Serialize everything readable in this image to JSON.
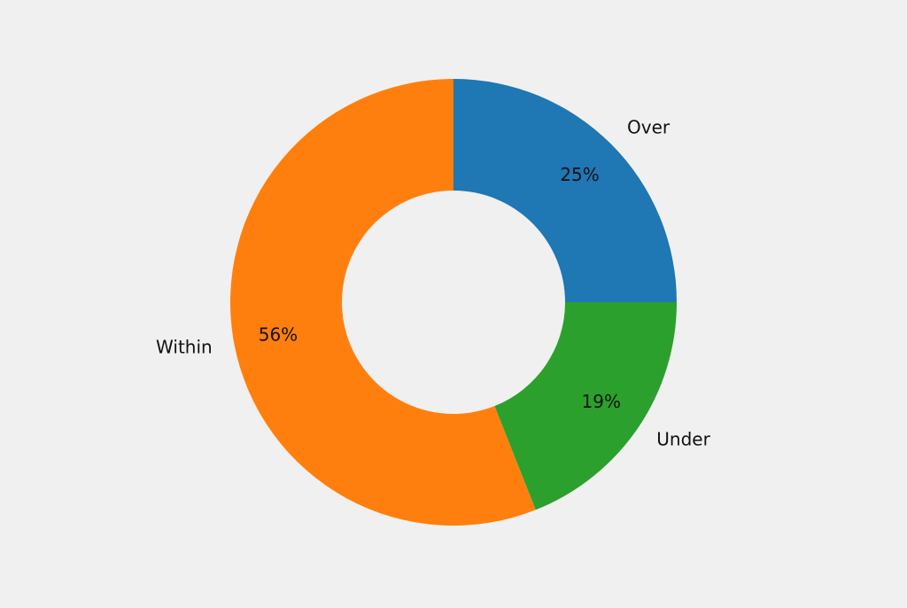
{
  "chart_data": {
    "type": "donut",
    "categories": [
      "Over",
      "Under",
      "Within"
    ],
    "values": [
      25,
      19,
      56
    ],
    "value_labels": [
      "25%",
      "19%",
      "56%"
    ],
    "colors": [
      "#1f77b4",
      "#2ca02c",
      "#ff7f0e"
    ]
  }
}
